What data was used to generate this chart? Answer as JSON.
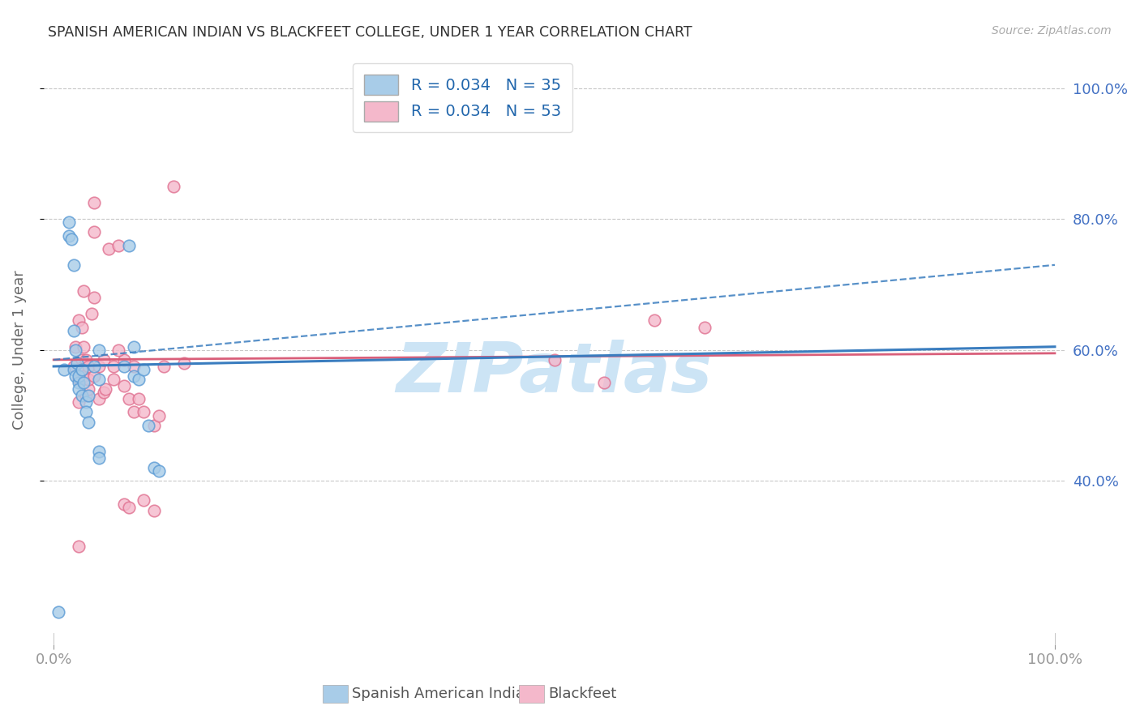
{
  "title": "SPANISH AMERICAN INDIAN VS BLACKFEET COLLEGE, UNDER 1 YEAR CORRELATION CHART",
  "source": "Source: ZipAtlas.com",
  "ylabel": "College, Under 1 year",
  "legend_blue_label": "R = 0.034   N = 35",
  "legend_pink_label": "R = 0.034   N = 53",
  "footer_blue": "Spanish American Indians",
  "footer_pink": "Blackfeet",
  "blue_fill": "#a8cce8",
  "blue_edge": "#5b9bd5",
  "pink_fill": "#f4b8cb",
  "pink_edge": "#e07090",
  "blue_line": "#3a7dbf",
  "pink_line": "#d95f7a",
  "blue_scatter_x": [
    1.0,
    1.5,
    1.5,
    1.8,
    2.0,
    2.0,
    2.0,
    2.2,
    2.2,
    2.3,
    2.5,
    2.5,
    2.5,
    2.8,
    2.8,
    3.0,
    3.2,
    3.2,
    3.5,
    3.5,
    4.0,
    4.5,
    4.5,
    4.5,
    4.5,
    7.0,
    7.5,
    8.0,
    8.0,
    8.5,
    9.0,
    9.5,
    10.0,
    10.5,
    0.5
  ],
  "blue_scatter_y": [
    57.0,
    77.5,
    79.5,
    77.0,
    73.0,
    63.0,
    57.0,
    60.0,
    56.0,
    58.0,
    55.0,
    56.0,
    54.0,
    57.0,
    53.0,
    55.0,
    52.0,
    50.5,
    49.0,
    53.0,
    57.5,
    55.5,
    44.5,
    43.5,
    60.0,
    57.5,
    76.0,
    60.5,
    56.0,
    55.5,
    57.0,
    48.5,
    42.0,
    41.5,
    20.0
  ],
  "pink_scatter_x": [
    2.0,
    2.2,
    2.5,
    2.5,
    2.5,
    2.8,
    2.8,
    2.8,
    3.0,
    3.0,
    3.0,
    3.0,
    3.2,
    3.2,
    3.5,
    3.5,
    3.5,
    3.8,
    4.0,
    4.0,
    4.5,
    4.5,
    5.0,
    5.0,
    5.2,
    5.5,
    6.0,
    6.0,
    6.5,
    7.0,
    7.0,
    7.5,
    8.0,
    8.0,
    8.5,
    9.0,
    10.0,
    11.0,
    12.0,
    13.0,
    4.0,
    4.0,
    6.5,
    2.5,
    7.0,
    7.5,
    9.0,
    10.0,
    10.5,
    50.0,
    55.0,
    60.0,
    65.0
  ],
  "pink_scatter_y": [
    57.5,
    60.5,
    55.5,
    52.0,
    64.5,
    58.5,
    56.0,
    63.5,
    60.5,
    69.0,
    57.5,
    56.0,
    53.0,
    58.5,
    54.0,
    57.5,
    55.5,
    65.5,
    68.0,
    56.0,
    52.5,
    57.5,
    53.5,
    58.5,
    54.0,
    75.5,
    57.5,
    55.5,
    76.0,
    58.5,
    54.5,
    52.5,
    50.5,
    57.5,
    52.5,
    50.5,
    48.5,
    57.5,
    85.0,
    58.0,
    78.0,
    82.5,
    60.0,
    30.0,
    36.5,
    36.0,
    37.0,
    35.5,
    50.0,
    58.5,
    55.0,
    64.5,
    63.5
  ],
  "xlim_min": 0,
  "xlim_max": 100,
  "ylim_min": 15,
  "ylim_max": 105,
  "yticks": [
    40,
    60,
    80,
    100
  ],
  "xticks": [
    0,
    100
  ],
  "blue_dashed_start_y": 58.5,
  "blue_dashed_end_y": 73.0,
  "pink_solid_start_y": 58.5,
  "pink_solid_end_y": 59.5,
  "blue_solid_start_y": 57.5,
  "blue_solid_end_y": 60.5,
  "watermark": "ZIPatlas",
  "watermark_color": "#cce4f5",
  "bg_color": "#ffffff",
  "grid_color": "#c8c8c8",
  "title_color": "#333333",
  "source_color": "#aaaaaa",
  "axis_label_color": "#666666",
  "tick_color": "#4472c4",
  "title_fontsize": 12.5,
  "axis_fontsize": 13,
  "scatter_size": 110
}
